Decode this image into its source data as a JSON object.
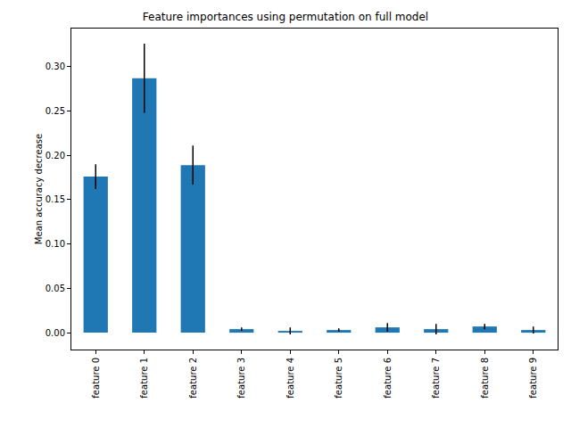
{
  "chart_data": {
    "type": "bar",
    "title": "Feature importances using permutation on full model",
    "y_label": "Mean accuracy decrease",
    "categories": [
      "feature 0",
      "feature 1",
      "feature 2",
      "feature 3",
      "feature 4",
      "feature 5",
      "feature 6",
      "feature 7",
      "feature 8",
      "feature 9"
    ],
    "values": [
      0.176,
      0.287,
      0.189,
      0.004,
      0.002,
      0.003,
      0.006,
      0.004,
      0.007,
      0.003
    ],
    "errors": [
      0.014,
      0.039,
      0.022,
      0.002,
      0.004,
      0.002,
      0.005,
      0.006,
      0.003,
      0.004
    ],
    "color": "#1f77b4",
    "ylim": [
      -0.019,
      0.343
    ],
    "yticks": [
      {
        "value": 0,
        "label": "0.00"
      },
      {
        "value": 0.05,
        "label": "0.05"
      },
      {
        "value": 0.1,
        "label": "0.10"
      },
      {
        "value": 0.15,
        "label": "0.15"
      },
      {
        "value": 0.2,
        "label": "0.20"
      },
      {
        "value": 0.25,
        "label": "0.25"
      },
      {
        "value": 0.3,
        "label": "0.30"
      }
    ],
    "grid": false
  }
}
